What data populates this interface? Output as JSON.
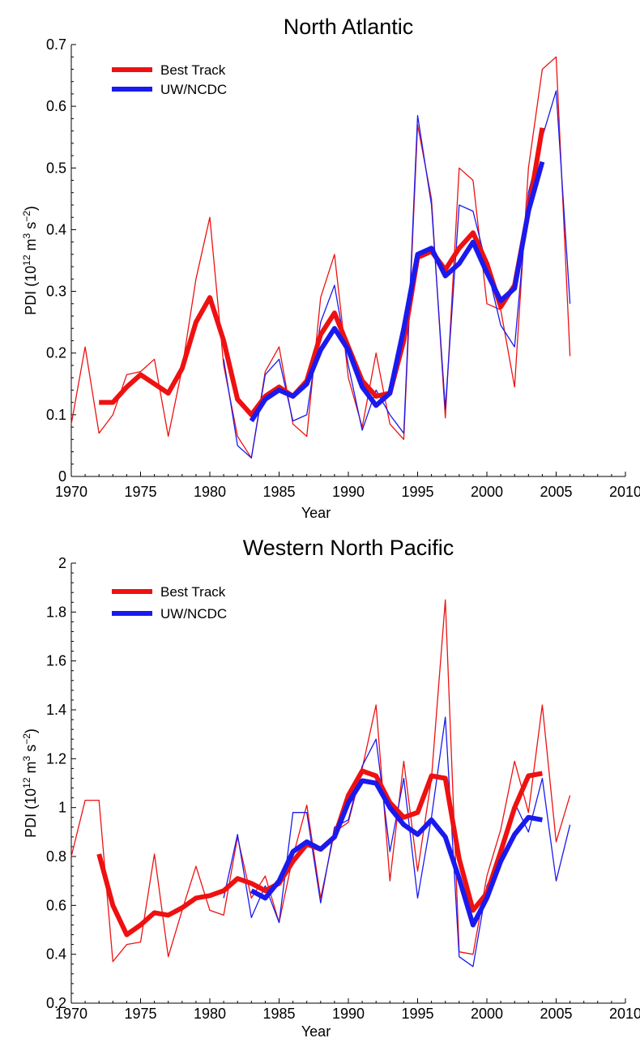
{
  "chart_data": [
    {
      "type": "line",
      "title": "North Atlantic",
      "xlabel": "Year",
      "ylabel": "PDI (10^12 m^3 s^-2)",
      "ylabel_parts": {
        "base": "PDI (10",
        "exp1": "12",
        "mid1": " m",
        "exp2": "3",
        "mid2": " s",
        "exp3": "−2",
        "end": ")"
      },
      "xlim": [
        1970,
        2010
      ],
      "ylim": [
        0,
        0.7
      ],
      "xticks": [
        1970,
        1975,
        1980,
        1985,
        1990,
        1995,
        2000,
        2005,
        2010
      ],
      "yticks": [
        0,
        0.1,
        0.2,
        0.3,
        0.4,
        0.5,
        0.6,
        0.7
      ],
      "ytick_labels": [
        "0",
        "0.1",
        "0.2",
        "0.3",
        "0.4",
        "0.5",
        "0.6",
        "0.7"
      ],
      "grid": false,
      "legend_position": "top-left",
      "legend": [
        {
          "name": "Best Track",
          "color": "#ee1111"
        },
        {
          "name": "UW/NCDC",
          "color": "#1a1aee"
        }
      ],
      "series": [
        {
          "name": "Best Track",
          "color": "#ee1111",
          "style": "thin",
          "x": [
            1970,
            1971,
            1972,
            1973,
            1974,
            1975,
            1976,
            1977,
            1978,
            1979,
            1980,
            1981,
            1982,
            1983,
            1984,
            1985,
            1986,
            1987,
            1988,
            1989,
            1990,
            1991,
            1992,
            1993,
            1994,
            1995,
            1996,
            1997,
            1998,
            1999,
            2000,
            2001,
            2002,
            2003,
            2004,
            2005,
            2006
          ],
          "y": [
            0.085,
            0.21,
            0.07,
            0.1,
            0.165,
            0.17,
            0.19,
            0.065,
            0.175,
            0.32,
            0.42,
            0.18,
            0.065,
            0.03,
            0.17,
            0.21,
            0.085,
            0.065,
            0.29,
            0.36,
            0.16,
            0.08,
            0.2,
            0.085,
            0.06,
            0.57,
            0.45,
            0.095,
            0.5,
            0.48,
            0.28,
            0.27,
            0.145,
            0.5,
            0.66,
            0.68,
            0.195
          ]
        },
        {
          "name": "UW/NCDC",
          "color": "#1a1aee",
          "style": "thin",
          "x": [
            1981,
            1982,
            1983,
            1984,
            1985,
            1986,
            1987,
            1988,
            1989,
            1990,
            1991,
            1992,
            1993,
            1994,
            1995,
            1996,
            1997,
            1998,
            1999,
            2000,
            2001,
            2002,
            2003,
            2004,
            2005,
            2006
          ],
          "y": [
            0.19,
            0.05,
            0.03,
            0.165,
            0.19,
            0.09,
            0.1,
            0.25,
            0.31,
            0.18,
            0.075,
            0.14,
            0.1,
            0.07,
            0.585,
            0.44,
            0.11,
            0.44,
            0.43,
            0.34,
            0.245,
            0.21,
            0.46,
            0.55,
            0.625,
            0.28
          ]
        },
        {
          "name": "Best Track",
          "color": "#ee1111",
          "style": "thick",
          "x": [
            1972,
            1973,
            1974,
            1975,
            1976,
            1977,
            1978,
            1979,
            1980,
            1981,
            1982,
            1983,
            1984,
            1985,
            1986,
            1987,
            1988,
            1989,
            1990,
            1991,
            1992,
            1993,
            1994,
            1995,
            1996,
            1997,
            1998,
            1999,
            2000,
            2001,
            2002,
            2003,
            2004
          ],
          "y": [
            0.12,
            0.12,
            0.145,
            0.165,
            0.15,
            0.135,
            0.175,
            0.25,
            0.29,
            0.22,
            0.125,
            0.1,
            0.13,
            0.145,
            0.13,
            0.155,
            0.23,
            0.265,
            0.21,
            0.155,
            0.13,
            0.135,
            0.22,
            0.355,
            0.365,
            0.335,
            0.37,
            0.395,
            0.345,
            0.275,
            0.31,
            0.43,
            0.565
          ]
        },
        {
          "name": "UW/NCDC",
          "color": "#1a1aee",
          "style": "thick",
          "x": [
            1983,
            1984,
            1985,
            1986,
            1987,
            1988,
            1989,
            1990,
            1991,
            1992,
            1993,
            1994,
            1995,
            1996,
            1997,
            1998,
            1999,
            2000,
            2001,
            2002,
            2003,
            2004
          ],
          "y": [
            0.09,
            0.125,
            0.14,
            0.13,
            0.15,
            0.205,
            0.24,
            0.205,
            0.145,
            0.115,
            0.135,
            0.24,
            0.36,
            0.37,
            0.325,
            0.345,
            0.38,
            0.33,
            0.285,
            0.305,
            0.43,
            0.51
          ]
        }
      ]
    },
    {
      "type": "line",
      "title": "Western North Pacific",
      "xlabel": "Year",
      "ylabel": "PDI (10^12 m^3 s^-2)",
      "ylabel_parts": {
        "base": "PDI (10",
        "exp1": "12",
        "mid1": " m",
        "exp2": "3",
        "mid2": " s",
        "exp3": "−2",
        "end": ")"
      },
      "xlim": [
        1970,
        2010
      ],
      "ylim": [
        0.2,
        2
      ],
      "xticks": [
        1970,
        1975,
        1980,
        1985,
        1990,
        1995,
        2000,
        2005,
        2010
      ],
      "yticks": [
        0.2,
        0.4,
        0.6,
        0.8,
        1,
        1.2,
        1.4,
        1.6,
        1.8,
        2
      ],
      "ytick_labels": [
        "0.2",
        "0.4",
        "0.6",
        "0.8",
        "1",
        "1.2",
        "1.4",
        "1.6",
        "1.8",
        "2"
      ],
      "grid": false,
      "legend_position": "top-left",
      "legend": [
        {
          "name": "Best Track",
          "color": "#ee1111"
        },
        {
          "name": "UW/NCDC",
          "color": "#1a1aee"
        }
      ],
      "series": [
        {
          "name": "Best Track",
          "color": "#ee1111",
          "style": "thin",
          "x": [
            1970,
            1971,
            1972,
            1973,
            1974,
            1975,
            1976,
            1977,
            1978,
            1979,
            1980,
            1981,
            1982,
            1983,
            1984,
            1985,
            1986,
            1987,
            1988,
            1989,
            1990,
            1991,
            1992,
            1993,
            1994,
            1995,
            1996,
            1997,
            1998,
            1999,
            2000,
            2001,
            2002,
            2003,
            2004,
            2005,
            2006
          ],
          "y": [
            0.8,
            1.03,
            1.03,
            0.37,
            0.44,
            0.45,
            0.81,
            0.39,
            0.58,
            0.76,
            0.58,
            0.56,
            0.88,
            0.63,
            0.72,
            0.53,
            0.8,
            1.01,
            0.63,
            0.9,
            0.94,
            1.16,
            1.42,
            0.7,
            1.19,
            0.74,
            1.12,
            1.85,
            0.41,
            0.4,
            0.72,
            0.91,
            1.19,
            0.98,
            1.42,
            0.86,
            1.05
          ]
        },
        {
          "name": "UW/NCDC",
          "color": "#1a1aee",
          "style": "thin",
          "x": [
            1981,
            1982,
            1983,
            1984,
            1985,
            1986,
            1987,
            1988,
            1989,
            1990,
            1991,
            1992,
            1993,
            1994,
            1995,
            1996,
            1997,
            1998,
            1999,
            2000,
            2001,
            2002,
            2003,
            2004,
            2005,
            2006
          ],
          "y": [
            0.63,
            0.89,
            0.55,
            0.68,
            0.53,
            0.98,
            0.98,
            0.61,
            0.92,
            0.95,
            1.17,
            1.28,
            0.82,
            1.12,
            0.63,
            0.96,
            1.37,
            0.39,
            0.35,
            0.68,
            0.8,
            1.02,
            0.9,
            1.12,
            0.7,
            0.93
          ]
        },
        {
          "name": "Best Track",
          "color": "#ee1111",
          "style": "thick",
          "x": [
            1972,
            1973,
            1974,
            1975,
            1976,
            1977,
            1978,
            1979,
            1980,
            1981,
            1982,
            1983,
            1984,
            1985,
            1986,
            1987,
            1988,
            1989,
            1990,
            1991,
            1992,
            1993,
            1994,
            1995,
            1996,
            1997,
            1998,
            1999,
            2000,
            2001,
            2002,
            2003,
            2004
          ],
          "y": [
            0.81,
            0.6,
            0.48,
            0.52,
            0.57,
            0.56,
            0.59,
            0.63,
            0.64,
            0.66,
            0.71,
            0.69,
            0.66,
            0.69,
            0.78,
            0.85,
            0.83,
            0.88,
            1.05,
            1.15,
            1.13,
            1.02,
            0.96,
            0.98,
            1.13,
            1.12,
            0.79,
            0.58,
            0.65,
            0.82,
            1.0,
            1.13,
            1.14
          ]
        },
        {
          "name": "UW/NCDC",
          "color": "#1a1aee",
          "style": "thick",
          "x": [
            1983,
            1984,
            1985,
            1986,
            1987,
            1988,
            1989,
            1990,
            1991,
            1992,
            1993,
            1994,
            1995,
            1996,
            1997,
            1998,
            1999,
            2000,
            2001,
            2002,
            2003,
            2004
          ],
          "y": [
            0.66,
            0.63,
            0.7,
            0.82,
            0.86,
            0.83,
            0.88,
            1.02,
            1.11,
            1.1,
            1.0,
            0.93,
            0.89,
            0.95,
            0.88,
            0.71,
            0.52,
            0.63,
            0.78,
            0.89,
            0.96,
            0.95
          ]
        }
      ]
    }
  ]
}
